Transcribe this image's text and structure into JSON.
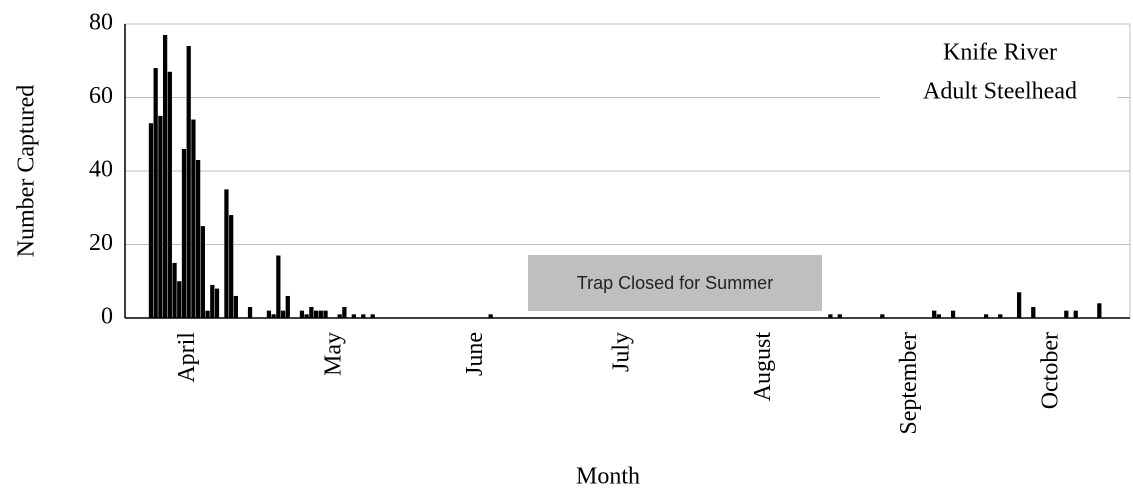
{
  "chart_data": {
    "type": "bar",
    "annotations": [
      "Knife River",
      "Adult Steelhead",
      "Trap Closed for Summer"
    ],
    "xlabel": "Month",
    "ylabel": "Number Captured",
    "color": "#000000",
    "grid": true,
    "ylim": [
      0,
      80
    ],
    "yticks": [
      0,
      20,
      40,
      60,
      80
    ],
    "categories": [
      null,
      null,
      null,
      null,
      null,
      null,
      null,
      null,
      null,
      null,
      null,
      null,
      null,
      "April",
      null,
      null,
      null,
      null,
      null,
      null,
      null,
      null,
      null,
      null,
      null,
      null,
      null,
      null,
      null,
      null,
      null,
      null,
      null,
      null,
      null,
      null,
      null,
      null,
      null,
      null,
      null,
      null,
      null,
      null,
      "May",
      null,
      null,
      null,
      null,
      null,
      null,
      null,
      null,
      null,
      null,
      null,
      null,
      null,
      null,
      null,
      null,
      null,
      null,
      null,
      null,
      null,
      null,
      null,
      null,
      null,
      null,
      null,
      null,
      null,
      "June",
      null,
      null,
      null,
      null,
      null,
      null,
      null,
      null,
      null,
      null,
      null,
      null,
      null,
      null,
      null,
      null,
      null,
      null,
      null,
      null,
      null,
      null,
      null,
      null,
      null,
      null,
      null,
      null,
      null,
      null,
      "July",
      null,
      null,
      null,
      null,
      null,
      null,
      null,
      null,
      null,
      null,
      null,
      null,
      null,
      null,
      null,
      null,
      null,
      null,
      null,
      null,
      null,
      null,
      null,
      null,
      null,
      null,
      null,
      null,
      null,
      "August",
      null,
      null,
      null,
      null,
      null,
      null,
      null,
      null,
      null,
      null,
      null,
      null,
      null,
      null,
      null,
      null,
      null,
      null,
      null,
      null,
      null,
      null,
      null,
      null,
      null,
      null,
      null,
      null,
      null,
      null,
      "September",
      null,
      null,
      null,
      null,
      null,
      null,
      null,
      null,
      null,
      null,
      null,
      null,
      null,
      null,
      null,
      null,
      null,
      null,
      null,
      null,
      null,
      null,
      null,
      null,
      null,
      null,
      null,
      null,
      null,
      "October",
      null,
      null,
      null,
      null,
      null,
      null,
      null,
      null,
      null,
      null,
      null,
      null,
      null,
      null,
      null,
      null
    ],
    "values": [
      0,
      0,
      0,
      0,
      0,
      53,
      68,
      55,
      77,
      67,
      15,
      10,
      46,
      74,
      54,
      43,
      25,
      2,
      9,
      8,
      0,
      35,
      28,
      6,
      0,
      0,
      3,
      0,
      0,
      0,
      2,
      1,
      17,
      2,
      6,
      0,
      0,
      2,
      1,
      3,
      2,
      2,
      2,
      0,
      0,
      1,
      3,
      0,
      1,
      0,
      1,
      0,
      1,
      0,
      0,
      0,
      0,
      0,
      0,
      0,
      0,
      0,
      0,
      0,
      0,
      0,
      0,
      0,
      0,
      0,
      0,
      0,
      0,
      0,
      0,
      0,
      0,
      1,
      0,
      0,
      0,
      0,
      0,
      0,
      0,
      0,
      0,
      0,
      0,
      0,
      0,
      0,
      0,
      0,
      0,
      0,
      0,
      0,
      0,
      0,
      0,
      0,
      0,
      0,
      0,
      0,
      0,
      0,
      0,
      0,
      0,
      0,
      0,
      0,
      0,
      0,
      0,
      0,
      0,
      0,
      0,
      0,
      0,
      0,
      0,
      0,
      0,
      0,
      0,
      0,
      0,
      0,
      0,
      0,
      0,
      0,
      0,
      0,
      0,
      0,
      0,
      0,
      0,
      0,
      0,
      0,
      0,
      0,
      0,
      1,
      0,
      1,
      0,
      0,
      0,
      0,
      0,
      0,
      0,
      0,
      1,
      0,
      0,
      0,
      0,
      0,
      0,
      0,
      0,
      0,
      0,
      2,
      1,
      0,
      0,
      2,
      0,
      0,
      0,
      0,
      0,
      0,
      1,
      0,
      0,
      1,
      0,
      0,
      0,
      7,
      0,
      0,
      3,
      0,
      0,
      0,
      0,
      0,
      0,
      2,
      0,
      2,
      0,
      0,
      0,
      0,
      4,
      0,
      0,
      0,
      0,
      0,
      0
    ]
  }
}
